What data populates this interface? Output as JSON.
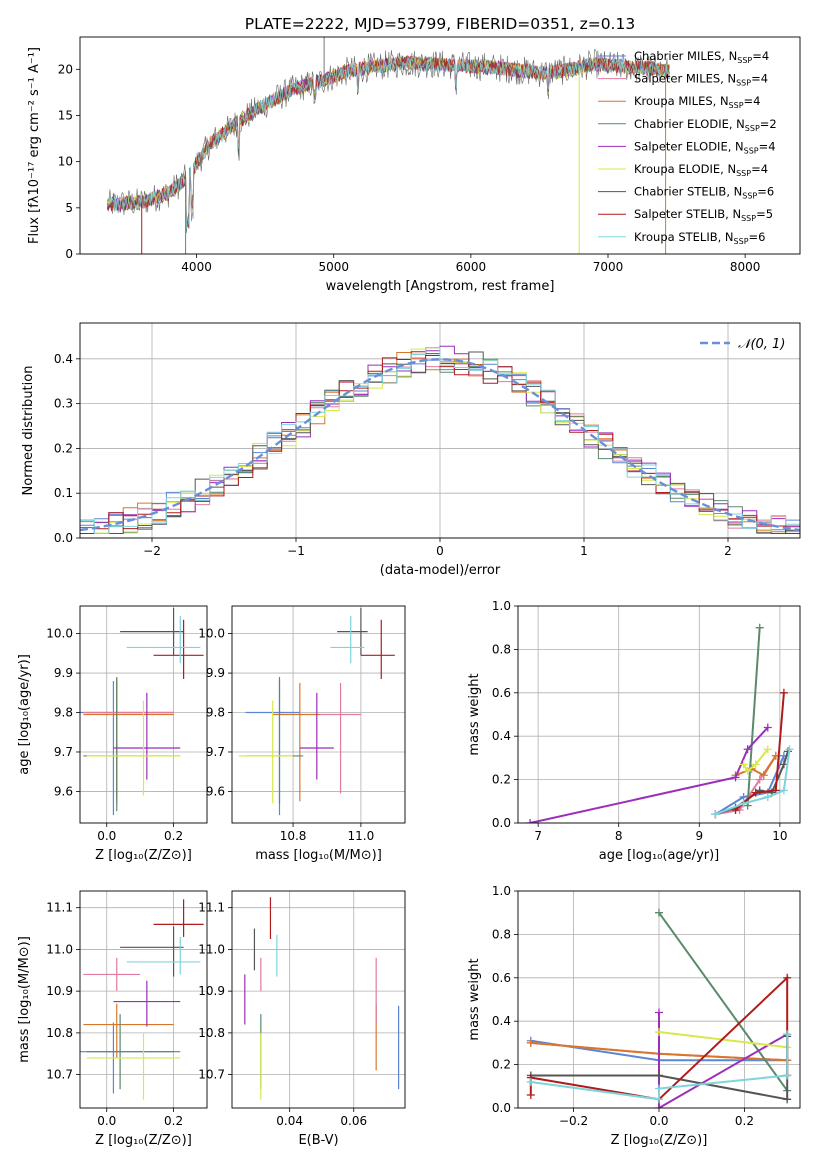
{
  "figure_title": "PLATE=2222, MJD=53799, FIBERID=0351, z=0.13",
  "colors": {
    "Chabrier MILES": "#5b86d6",
    "Salpeter MILES": "#e07aa0",
    "Kroupa MILES": "#d8772c",
    "Chabrier ELODIE": "#5a8a6a",
    "Salpeter ELODIE": "#9b2fb8",
    "Kroupa ELODIE": "#d8e84a",
    "Chabrier STELIB": "#555555",
    "Salpeter STELIB": "#b01c1c",
    "Kroupa STELIB": "#7fd3dc"
  },
  "chart_data": [
    {
      "id": "spectrum",
      "type": "line",
      "title": "PLATE=2222, MJD=53799, FIBERID=0351, z=0.13",
      "xlabel": "wavelength [Angstrom, rest frame]",
      "ylabel": "Flux [fλ10⁻¹⁷ erg cm⁻² s⁻¹ A⁻¹]",
      "xlim": [
        3150,
        8400
      ],
      "ylim": [
        0,
        23.5
      ],
      "xticks": [
        4000,
        5000,
        6000,
        7000,
        8000
      ],
      "yticks": [
        0,
        5,
        10,
        15,
        20
      ],
      "grid": false,
      "legend": "top-right",
      "legend_entries": [
        "Chabrier MILES, N_SSP=4",
        "Salpeter MILES, N_SSP=4",
        "Kroupa MILES, N_SSP=4",
        "Chabrier ELODIE, N_SSP=2",
        "Salpeter ELODIE, N_SSP=4",
        "Kroupa ELODIE, N_SSP=4",
        "Chabrier STELIB, N_SSP=6",
        "Salpeter STELIB, N_SSP=5",
        "Kroupa STELIB, N_SSP=6"
      ],
      "legend_colors": [
        "#5b86d6",
        "#e07aa0",
        "#d8772c",
        "#5a8a6a",
        "#9b2fb8",
        "#d8e84a",
        "#555555",
        "#b01c1c",
        "#7fd3dc"
      ],
      "continuum": {
        "x": [
          3400,
          3600,
          3800,
          3950,
          4100,
          4300,
          4500,
          4700,
          4900,
          5100,
          5300,
          5500,
          5700,
          5900,
          6100,
          6300,
          6500,
          6700,
          6900,
          7100,
          7300,
          7500
        ],
        "y": [
          5.4,
          5.6,
          6.6,
          8.6,
          12.0,
          14.3,
          16.2,
          17.8,
          18.7,
          19.8,
          20.3,
          20.7,
          20.6,
          20.4,
          20.3,
          20.0,
          19.6,
          19.9,
          20.6,
          20.3,
          20.1,
          19.6
        ]
      },
      "spectrum_x_range": [
        3350,
        7450
      ]
    },
    {
      "id": "residuals",
      "type": "bar",
      "xlabel": "(data-model)/error",
      "ylabel": "Normed distribution",
      "xlim": [
        -2.5,
        2.5
      ],
      "ylim": [
        0,
        0.48
      ],
      "xticks": [
        -2,
        -1,
        0,
        1,
        2
      ],
      "yticks": [
        0.0,
        0.1,
        0.2,
        0.3,
        0.4
      ],
      "grid": true,
      "legend": "top-right",
      "legend_entries": [
        "𝒩(0, 1)"
      ],
      "gaussian_color": "#6a8fd9",
      "bin_width": 0.1,
      "series_colors": [
        "#5b86d6",
        "#e07aa0",
        "#d8772c",
        "#5a8a6a",
        "#9b2fb8",
        "#d8e84a",
        "#555555",
        "#b01c1c",
        "#7fd3dc"
      ]
    },
    {
      "id": "age_vs_Z",
      "type": "scatter",
      "xlabel": "Z [log₁₀(Z/Z⊙)]",
      "ylabel": "age  [log₁₀(age/yr)]",
      "xlim": [
        -0.08,
        0.3
      ],
      "ylim": [
        9.52,
        10.07
      ],
      "xticks": [
        0.0,
        0.2
      ],
      "xtick_labels": [
        "0.0",
        "0.2"
      ],
      "yticks": [
        9.6,
        9.7,
        9.8,
        9.9,
        10.0
      ],
      "grid": true,
      "points": [
        {
          "x": 0.02,
          "y": 9.8,
          "xerr": [
            0.1,
            0.18
          ],
          "yerr": [
            0.26,
            0.08
          ],
          "c": "#5b86d6"
        },
        {
          "x": 0.03,
          "y": 9.8,
          "xerr": [
            0.1,
            0.17
          ],
          "yerr": [
            0.23,
            0.08
          ],
          "c": "#e07aa0"
        },
        {
          "x": 0.03,
          "y": 9.795,
          "xerr": [
            0.1,
            0.17
          ],
          "yerr": [
            0.21,
            0.09
          ],
          "c": "#d8772c"
        },
        {
          "x": 0.03,
          "y": 9.69,
          "xerr": [
            0.1,
            0.19
          ],
          "yerr": [
            0.14,
            0.2
          ],
          "c": "#5a8a6a"
        },
        {
          "x": 0.12,
          "y": 9.71,
          "xerr": [
            0.1,
            0.1
          ],
          "yerr": [
            0.08,
            0.14
          ],
          "c": "#9b2fb8"
        },
        {
          "x": 0.11,
          "y": 9.69,
          "xerr": [
            0.17,
            0.11
          ],
          "yerr": [
            0.1,
            0.14
          ],
          "c": "#d8e84a"
        },
        {
          "x": 0.2,
          "y": 10.005,
          "xerr": [
            0.16,
            0.03
          ],
          "yerr": [
            0.06,
            0.06
          ],
          "c": "#555555"
        },
        {
          "x": 0.23,
          "y": 9.945,
          "xerr": [
            0.09,
            0.06
          ],
          "yerr": [
            0.06,
            0.09
          ],
          "c": "#b01c1c"
        },
        {
          "x": 0.22,
          "y": 9.965,
          "xerr": [
            0.16,
            0.06
          ],
          "yerr": [
            0.04,
            0.08
          ],
          "c": "#7fd3dc"
        }
      ]
    },
    {
      "id": "age_vs_mass",
      "type": "scatter",
      "xlabel": "mass [log₁₀(M/M⊙)]",
      "xlim": [
        10.62,
        11.13
      ],
      "ylim": [
        9.52,
        10.07
      ],
      "xticks": [
        10.8,
        11.0
      ],
      "xtick_labels": [
        "10.8",
        "11.0"
      ],
      "yticks": [
        9.6,
        9.7,
        9.8,
        9.9,
        10.0
      ],
      "grid": true,
      "points": [
        {
          "x": 10.76,
          "y": 9.8,
          "xerr": [
            0.1,
            0.06
          ],
          "yerr": [
            0.26,
            0.08
          ],
          "c": "#5b86d6"
        },
        {
          "x": 10.94,
          "y": 9.795,
          "xerr": [
            0.06,
            0.06
          ],
          "yerr": [
            0.2,
            0.08
          ],
          "c": "#e07aa0"
        },
        {
          "x": 10.82,
          "y": 9.795,
          "xerr": [
            0.08,
            0.06
          ],
          "yerr": [
            0.22,
            0.08
          ],
          "c": "#d8772c"
        },
        {
          "x": 10.76,
          "y": 9.69,
          "xerr": [
            0.1,
            0.07
          ],
          "yerr": [
            0.12,
            0.2
          ],
          "c": "#5a8a6a"
        },
        {
          "x": 10.87,
          "y": 9.71,
          "xerr": [
            0.05,
            0.05
          ],
          "yerr": [
            0.08,
            0.14
          ],
          "c": "#9b2fb8"
        },
        {
          "x": 10.74,
          "y": 9.69,
          "xerr": [
            0.1,
            0.06
          ],
          "yerr": [
            0.12,
            0.14
          ],
          "c": "#d8e84a"
        },
        {
          "x": 11.0,
          "y": 10.005,
          "xerr": [
            0.07,
            0.02
          ],
          "yerr": [
            0.06,
            0.06
          ],
          "c": "#555555"
        },
        {
          "x": 11.06,
          "y": 9.945,
          "xerr": [
            0.06,
            0.04
          ],
          "yerr": [
            0.06,
            0.09
          ],
          "c": "#b01c1c"
        },
        {
          "x": 10.97,
          "y": 9.965,
          "xerr": [
            0.06,
            0.04
          ],
          "yerr": [
            0.04,
            0.08
          ],
          "c": "#7fd3dc"
        }
      ]
    },
    {
      "id": "weight_vs_age",
      "type": "line",
      "xlabel": "age  [log₁₀(age/yr)]",
      "ylabel": "mass weight",
      "xlim": [
        6.75,
        10.25
      ],
      "ylim": [
        0,
        1
      ],
      "xticks": [
        7,
        8,
        9,
        10
      ],
      "yticks": [
        0.0,
        0.2,
        0.4,
        0.6,
        0.8,
        1.0
      ],
      "grid": true,
      "series": [
        {
          "c": "#5b86d6",
          "x": [
            9.2,
            9.55,
            9.85,
            10.05
          ],
          "y": [
            0.04,
            0.12,
            0.14,
            0.31
          ]
        },
        {
          "c": "#e07aa0",
          "x": [
            9.2,
            9.5,
            9.75,
            9.95
          ],
          "y": [
            0.04,
            0.06,
            0.2,
            0.31
          ]
        },
        {
          "c": "#d8772c",
          "x": [
            9.45,
            9.65,
            9.8,
            9.95
          ],
          "y": [
            0.22,
            0.25,
            0.22,
            0.31
          ]
        },
        {
          "c": "#5a8a6a",
          "x": [
            9.6,
            9.75
          ],
          "y": [
            0.08,
            0.9
          ]
        },
        {
          "c": "#9b2fb8",
          "x": [
            6.9,
            9.45,
            9.6,
            9.85
          ],
          "y": [
            0.0,
            0.21,
            0.34,
            0.44
          ]
        },
        {
          "c": "#d8e84a",
          "x": [
            9.55,
            9.6,
            9.7,
            9.85
          ],
          "y": [
            0.27,
            0.24,
            0.27,
            0.34
          ]
        },
        {
          "c": "#555555",
          "x": [
            9.2,
            9.45,
            9.75,
            9.9,
            10.05,
            10.1
          ],
          "y": [
            0.04,
            0.07,
            0.15,
            0.14,
            0.27,
            0.33
          ]
        },
        {
          "c": "#b01c1c",
          "x": [
            9.45,
            9.7,
            9.95,
            10.05
          ],
          "y": [
            0.06,
            0.14,
            0.15,
            0.6
          ]
        },
        {
          "c": "#7fd3dc",
          "x": [
            9.2,
            9.55,
            9.85,
            10.05,
            10.12
          ],
          "y": [
            0.04,
            0.09,
            0.12,
            0.15,
            0.34
          ]
        }
      ]
    },
    {
      "id": "mass_vs_Z",
      "type": "scatter",
      "xlabel": "Z [log₁₀(Z/Z⊙)]",
      "ylabel": "mass [log₁₀(M/M⊙)]",
      "xlim": [
        -0.08,
        0.3
      ],
      "ylim": [
        10.62,
        11.14
      ],
      "xticks": [
        0.0,
        0.2
      ],
      "xtick_labels": [
        "0.0",
        "0.2"
      ],
      "yticks": [
        10.7,
        10.8,
        10.9,
        11.0,
        11.1
      ],
      "yticks_left": [
        10.7,
        10.8,
        10.9,
        11.0,
        11.1
      ],
      "grid": true,
      "points": [
        {
          "x": 0.02,
          "y": 10.755,
          "xerr": [
            0.1,
            0.18
          ],
          "yerr": [
            0.1,
            0.07
          ],
          "c": "#5b86d6"
        },
        {
          "x": 0.03,
          "y": 10.94,
          "xerr": [
            0.1,
            0.07
          ],
          "yerr": [
            0.04,
            0.04
          ],
          "c": "#e07aa0"
        },
        {
          "x": 0.03,
          "y": 10.82,
          "xerr": [
            0.1,
            0.17
          ],
          "yerr": [
            0.08,
            0.05
          ],
          "c": "#d8772c"
        },
        {
          "x": 0.04,
          "y": 10.755,
          "xerr": [
            0.1,
            0.18
          ],
          "yerr": [
            0.09,
            0.09
          ],
          "c": "#5a8a6a"
        },
        {
          "x": 0.12,
          "y": 10.875,
          "xerr": [
            0.1,
            0.1
          ],
          "yerr": [
            0.06,
            0.05
          ],
          "c": "#9b2fb8"
        },
        {
          "x": 0.11,
          "y": 10.74,
          "xerr": [
            0.17,
            0.11
          ],
          "yerr": [
            0.1,
            0.06
          ],
          "c": "#d8e84a"
        },
        {
          "x": 0.2,
          "y": 11.005,
          "xerr": [
            0.16,
            0.03
          ],
          "yerr": [
            0.07,
            0.05
          ],
          "c": "#555555"
        },
        {
          "x": 0.23,
          "y": 11.06,
          "xerr": [
            0.09,
            0.06
          ],
          "yerr": [
            0.03,
            0.06
          ],
          "c": "#b01c1c"
        },
        {
          "x": 0.22,
          "y": 10.97,
          "xerr": [
            0.16,
            0.06
          ],
          "yerr": [
            0.03,
            0.06
          ],
          "c": "#7fd3dc"
        }
      ]
    },
    {
      "id": "mass_vs_ebv",
      "type": "scatter",
      "xlabel": "E(B-V)",
      "xlim": [
        0.022,
        0.076
      ],
      "ylim": [
        10.62,
        11.14
      ],
      "xticks": [
        0.04,
        0.06
      ],
      "xtick_labels": [
        "0.04",
        "0.06"
      ],
      "yticks": [
        10.7,
        10.8,
        10.9,
        11.0,
        11.1
      ],
      "grid": true,
      "points": [
        {
          "x": 0.074,
          "y": 10.765,
          "xerr": [
            0,
            0
          ],
          "yerr": [
            0.1,
            0.1
          ],
          "c": "#5b86d6"
        },
        {
          "x": 0.031,
          "y": 10.94,
          "xerr": [
            0,
            0
          ],
          "yerr": [
            0.04,
            0.04
          ],
          "c": "#e07aa0"
        },
        {
          "x": 0.067,
          "y": 10.8,
          "xerr": [
            0,
            0
          ],
          "yerr": [
            0.09,
            0.07
          ],
          "c": "#d8772c"
        },
        {
          "x": 0.031,
          "y": 10.755,
          "xerr": [
            0,
            0
          ],
          "yerr": [
            0.09,
            0.09
          ],
          "c": "#5a8a6a"
        },
        {
          "x": 0.026,
          "y": 10.88,
          "xerr": [
            0,
            0
          ],
          "yerr": [
            0.06,
            0.06
          ],
          "c": "#9b2fb8"
        },
        {
          "x": 0.031,
          "y": 10.72,
          "xerr": [
            0,
            0
          ],
          "yerr": [
            0.08,
            0.08
          ],
          "c": "#d8e84a"
        },
        {
          "x": 0.029,
          "y": 11.0,
          "xerr": [
            0,
            0
          ],
          "yerr": [
            0.05,
            0.05
          ],
          "c": "#555555"
        },
        {
          "x": 0.034,
          "y": 11.075,
          "xerr": [
            0,
            0
          ],
          "yerr": [
            0.05,
            0.05
          ],
          "c": "#b01c1c"
        },
        {
          "x": 0.036,
          "y": 10.985,
          "xerr": [
            0,
            0
          ],
          "yerr": [
            0.05,
            0.05
          ],
          "c": "#7fd3dc"
        },
        {
          "x": 0.067,
          "y": 10.9,
          "xerr": [
            0,
            0
          ],
          "yerr": [
            0.08,
            0.08
          ],
          "c": "#e07aa0"
        }
      ]
    },
    {
      "id": "weight_vs_Z",
      "type": "line",
      "xlabel": "Z [log₁₀(Z/Z⊙)]",
      "ylabel": "mass weight",
      "xlim": [
        -0.33,
        0.33
      ],
      "ylim": [
        0,
        1
      ],
      "xticks": [
        -0.2,
        0.0,
        0.2
      ],
      "yticks": [
        0.0,
        0.2,
        0.4,
        0.6,
        0.8,
        1.0
      ],
      "grid": true,
      "series": [
        {
          "c": "#5b86d6",
          "x": [
            -0.3,
            0.0,
            0.3
          ],
          "y": [
            0.31,
            0.22,
            0.22
          ]
        },
        {
          "c": "#e07aa0",
          "x": [
            -0.3,
            0.0,
            0.3
          ],
          "y": [
            0.3,
            0.25,
            0.22
          ]
        },
        {
          "c": "#d8772c",
          "x": [
            -0.3,
            0.0,
            0.3
          ],
          "y": [
            0.3,
            0.25,
            0.22
          ]
        },
        {
          "c": "#5a8a6a",
          "x": [
            0.0,
            0.3
          ],
          "y": [
            0.9,
            0.08
          ]
        },
        {
          "c": "#9b2fb8",
          "x": [
            0.0,
            0.0,
            0.3
          ],
          "y": [
            0.44,
            0.0,
            0.34
          ]
        },
        {
          "c": "#d8e84a",
          "x": [
            0.0,
            0.3
          ],
          "y": [
            0.35,
            0.28
          ]
        },
        {
          "c": "#555555",
          "x": [
            -0.3,
            0.0,
            0.3,
            0.3
          ],
          "y": [
            0.15,
            0.15,
            0.04,
            0.33
          ]
        },
        {
          "c": "#b01c1c",
          "x": [
            -0.3,
            -0.3,
            0.0,
            0.3,
            0.3
          ],
          "y": [
            0.06,
            0.14,
            0.04,
            0.6,
            0.15
          ]
        },
        {
          "c": "#7fd3dc",
          "x": [
            -0.3,
            0.0,
            0.0,
            0.3,
            0.3
          ],
          "y": [
            0.12,
            0.04,
            0.09,
            0.15,
            0.34
          ]
        }
      ]
    }
  ]
}
